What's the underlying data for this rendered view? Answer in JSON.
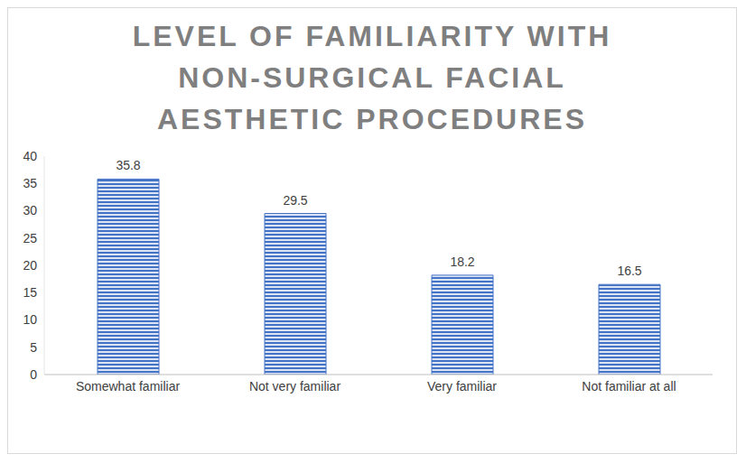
{
  "chart_data": {
    "type": "bar",
    "title": "LEVEL OF FAMILIARITY WITH NON-SURGICAL FACIAL AESTHETIC PROCEDURES",
    "categories": [
      "Somewhat familiar",
      "Not very familiar",
      "Very familiar",
      "Not familiar at all"
    ],
    "values": [
      35.8,
      29.5,
      18.2,
      16.5
    ],
    "color": "#4472c4",
    "ylim": [
      0,
      40
    ],
    "yticks": [
      0,
      5,
      10,
      15,
      20,
      25,
      30,
      35,
      40
    ],
    "grid": false,
    "data_labels": true
  }
}
